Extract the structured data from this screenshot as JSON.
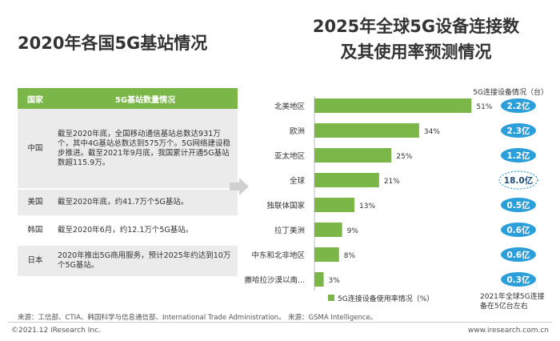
{
  "left_title": "2020年各国5G基站情况",
  "right_title": [
    "2025年全球5G设备连接数",
    "及其使用率预测情况"
  ],
  "table": {
    "headers": [
      "国家",
      "5G基站数量情况"
    ],
    "rows": [
      {
        "country": "中国",
        "text": "截至2020年底，全国移动通信基站总数达931万个，其中4G基站总数达到575万个。5G网络建设稳步推进。截至2021年9月底，我国累计开通5G基站数超115.9万。"
      },
      {
        "country": "美国",
        "text": "截至2020年底，约41.7万个5G基站。"
      },
      {
        "country": "韩国",
        "text": "截至2020年6月，约12.1万个5G基站。"
      },
      {
        "country": "日本",
        "text": "2020年推出5G商用服务，预计2025年约达到10万个5G基站。"
      }
    ]
  },
  "chart_data": {
    "type": "bar",
    "orientation": "horizontal",
    "categories": [
      "北美地区",
      "欧洲",
      "亚太地区",
      "全球",
      "独联体国家",
      "拉丁美洲",
      "中东和北非地区",
      "撒哈拉沙漠以南..."
    ],
    "series": [
      {
        "name": "5G连接设备使用率情况（%）",
        "values": [
          51,
          34,
          25,
          21,
          13,
          9,
          8,
          3
        ],
        "value_labels": [
          "51%",
          "34%",
          "25%",
          "21%",
          "13%",
          "9%",
          "8%",
          "3%"
        ]
      }
    ],
    "connections_header": "5G连接设备情况（台）",
    "connections": [
      "2.2亿",
      "2.3亿",
      "1.2亿",
      "18.0亿",
      "0.5亿",
      "0.6亿",
      "0.6亿",
      "0.3亿"
    ],
    "highlight_index": 3,
    "xlim": [
      0,
      100
    ],
    "legend": "bottom",
    "note": [
      "2021年全球5G连接",
      "备在5亿台左右"
    ],
    "colors": {
      "bar": "#7ab648",
      "bubble": "#2b9fd9",
      "bubble_highlight_border": "#2b9fd9"
    }
  },
  "sources": {
    "left": "来源：工信部、CTIA、韩国科学与信息通信部、International Trade Administration。",
    "right": "来源：GSMA Intelligence。"
  },
  "footer": {
    "copyright": "©2021.12 iResearch Inc.",
    "website": "www.iresearch.com.cn"
  }
}
